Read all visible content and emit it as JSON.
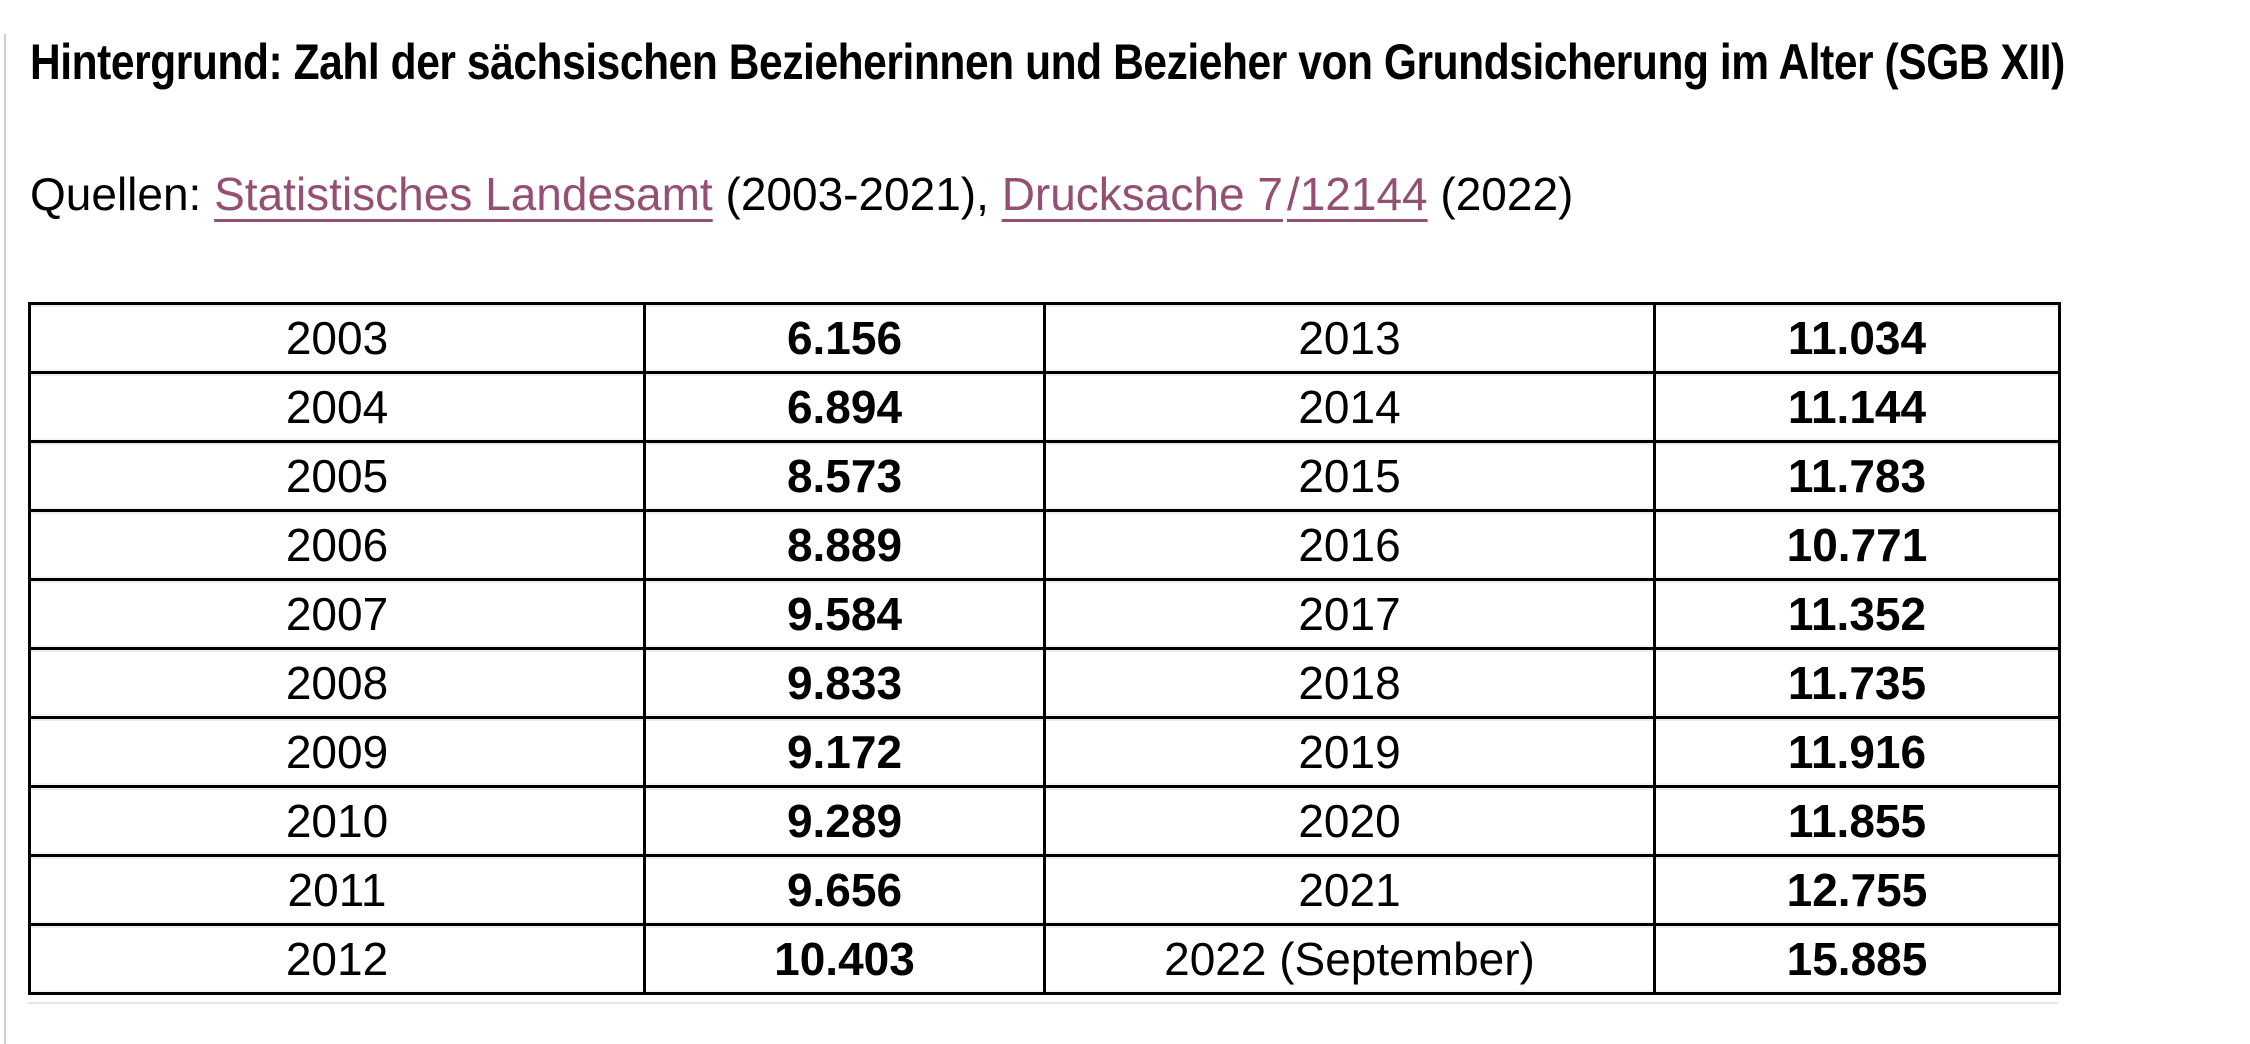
{
  "page": {
    "title": "Hintergrund: Zahl der sächsischen Bezieherinnen und Bezieher von Grundsicherung im Alter (SGB XII)"
  },
  "sources": {
    "label": "Quellen:",
    "link_landesamt": "Statistisches Landesamt",
    "between": "(2003-2021),",
    "link_drucksache_part1": "Drucksache 7",
    "link_drucksache_part2": "/12144",
    "suffix": "(2022)",
    "link_color": "#954F72"
  },
  "table": {
    "columns": [
      "year-left",
      "value-left",
      "year-right",
      "value-right"
    ],
    "rows": [
      [
        "2003",
        "6.156",
        "2013",
        "11.034"
      ],
      [
        "2004",
        "6.894",
        "2014",
        "11.144"
      ],
      [
        "2005",
        "8.573",
        "2015",
        "11.783"
      ],
      [
        "2006",
        "8.889",
        "2016",
        "10.771"
      ],
      [
        "2007",
        "9.584",
        "2017",
        "11.352"
      ],
      [
        "2008",
        "9.833",
        "2018",
        "11.735"
      ],
      [
        "2009",
        "9.172",
        "2019",
        "11.916"
      ],
      [
        "2010",
        "9.289",
        "2020",
        "11.855"
      ],
      [
        "2011",
        "9.656",
        "2021",
        "12.755"
      ],
      [
        "2012",
        "10.403",
        "2022 (September)",
        "15.885"
      ]
    ]
  }
}
